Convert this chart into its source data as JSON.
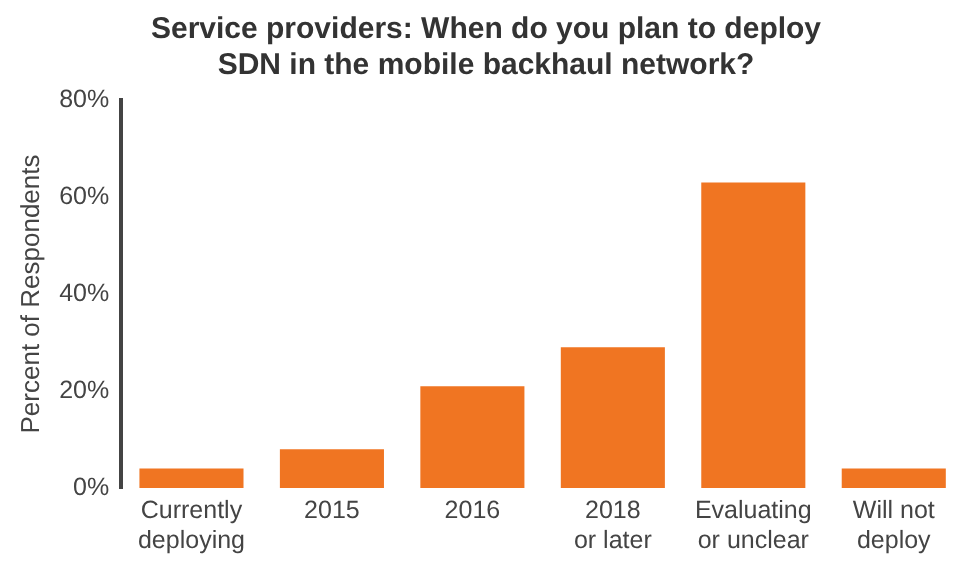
{
  "chart_data": {
    "type": "bar",
    "title": "Service providers: When do you plan to deploy\nSDN in the mobile backhaul network?",
    "ylabel": "Percent of Respondents",
    "categories": [
      "Currently\ndeploying",
      "2015",
      "2016",
      "2018\nor later",
      "Evaluating\nor unclear",
      "Will not\ndeploy"
    ],
    "values": [
      4,
      8,
      21,
      29,
      63,
      4
    ],
    "color": "#f07522",
    "ylim": [
      0,
      80
    ],
    "yticks": [
      {
        "value": 0,
        "label": "0%"
      },
      {
        "value": 20,
        "label": "20%"
      },
      {
        "value": 40,
        "label": "40%"
      },
      {
        "value": 60,
        "label": "60%"
      },
      {
        "value": 80,
        "label": "80%"
      }
    ],
    "grid": false
  }
}
